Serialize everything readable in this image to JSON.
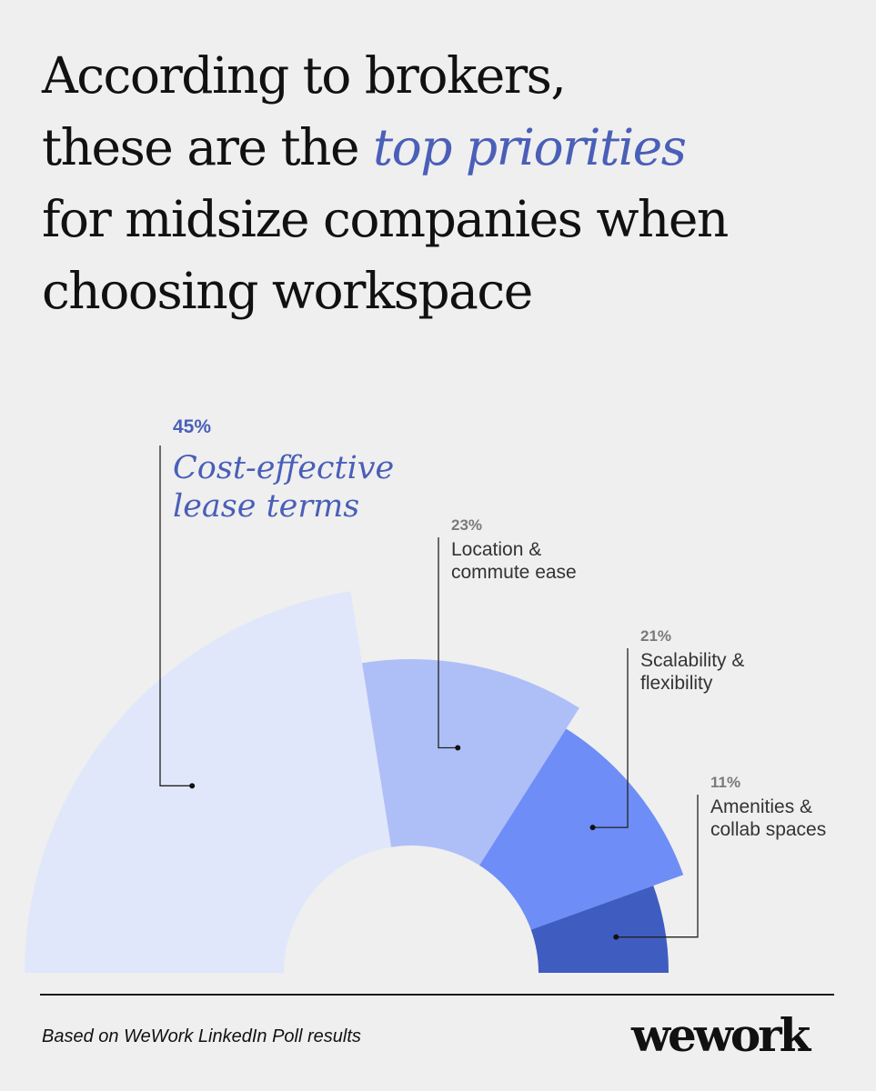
{
  "title": {
    "line1": "According to brokers,",
    "line2_pre": "these are the ",
    "line2_highlight": "top priorities",
    "line3": "for midsize companies when",
    "line4": "choosing workspace",
    "highlight_color": "#4a5fb8"
  },
  "chart_data": {
    "type": "pie",
    "variant": "half-donut",
    "slices": [
      {
        "pct_label": "45%",
        "label_lines": [
          "Cost-effective",
          "lease terms"
        ],
        "value": 45,
        "color": "#e1e7fa",
        "label_color": "#4a5fb8"
      },
      {
        "pct_label": "23%",
        "label_lines": [
          "Location &",
          "commute ease"
        ],
        "value": 23,
        "color": "#aebff8",
        "label_color": "#333333"
      },
      {
        "pct_label": "21%",
        "label_lines": [
          "Scalability &",
          "flexibility"
        ],
        "value": 21,
        "color": "#6e8df6",
        "label_color": "#333333"
      },
      {
        "pct_label": "11%",
        "label_lines": [
          "Amenities &",
          "collab spaces"
        ],
        "value": 11,
        "color": "#3f5cc0",
        "label_color": "#333333"
      }
    ]
  },
  "footer": {
    "source": "Based on WeWork LinkedIn Poll results",
    "logo": "wework"
  }
}
